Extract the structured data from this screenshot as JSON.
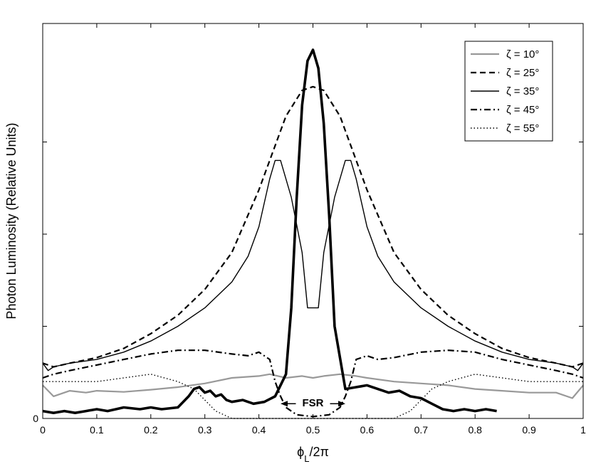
{
  "chart_data": {
    "type": "line",
    "title": "",
    "xlabel": "ϕ_L/2π",
    "xlabel_main": "ϕ",
    "xlabel_sub": "L",
    "xlabel_tail": "/2π",
    "ylabel": "Photon Luminosity (Relative Units)",
    "xlim": [
      0,
      1
    ],
    "ylim": [
      0,
      1
    ],
    "x_ticks": [
      0,
      0.1,
      0.2,
      0.3,
      0.4,
      0.5,
      0.6,
      0.7,
      0.8,
      0.9,
      1
    ],
    "x_tick_labels": [
      "0",
      "0.1",
      "0.2",
      "0.3",
      "0.4",
      "0.5",
      "0.6",
      "0.7",
      "0.8",
      "0.9",
      "1"
    ],
    "y_tick_labels": [
      "0"
    ],
    "grid": false,
    "legend_position": "top-right",
    "annotations": [
      {
        "text": "FSR",
        "x_from": 0.44,
        "x_to": 0.56,
        "y": 0.04
      }
    ],
    "series": [
      {
        "name": "ζ = 10°",
        "style": "solid",
        "color": "#999999",
        "width": "medium",
        "x": [
          0,
          0.02,
          0.05,
          0.08,
          0.1,
          0.15,
          0.2,
          0.25,
          0.3,
          0.35,
          0.4,
          0.42,
          0.45,
          0.48,
          0.5,
          0.52,
          0.55,
          0.58,
          0.6,
          0.65,
          0.7,
          0.75,
          0.8,
          0.85,
          0.9,
          0.95,
          0.98,
          1
        ],
        "y": [
          0.09,
          0.06,
          0.075,
          0.07,
          0.075,
          0.072,
          0.078,
          0.085,
          0.095,
          0.11,
          0.115,
          0.12,
          0.11,
          0.115,
          0.11,
          0.115,
          0.12,
          0.115,
          0.11,
          0.1,
          0.095,
          0.09,
          0.08,
          0.075,
          0.07,
          0.07,
          0.055,
          0.09
        ]
      },
      {
        "name": "ζ = 25°",
        "style": "dashed",
        "color": "#000000",
        "width": "medium",
        "x": [
          0,
          0.02,
          0.05,
          0.1,
          0.15,
          0.2,
          0.25,
          0.3,
          0.35,
          0.4,
          0.45,
          0.48,
          0.5,
          0.52,
          0.55,
          0.6,
          0.65,
          0.7,
          0.75,
          0.8,
          0.85,
          0.9,
          0.95,
          0.98,
          1
        ],
        "y": [
          0.15,
          0.14,
          0.15,
          0.165,
          0.19,
          0.23,
          0.28,
          0.35,
          0.45,
          0.62,
          0.82,
          0.89,
          0.9,
          0.89,
          0.82,
          0.62,
          0.45,
          0.35,
          0.28,
          0.23,
          0.19,
          0.165,
          0.15,
          0.14,
          0.15
        ]
      },
      {
        "name": "ζ = 35°",
        "style": "solid",
        "color": "#000000",
        "width": "thin",
        "x": [
          0,
          0.01,
          0.02,
          0.05,
          0.1,
          0.15,
          0.2,
          0.25,
          0.3,
          0.35,
          0.38,
          0.4,
          0.42,
          0.43,
          0.44,
          0.46,
          0.48,
          0.49,
          0.5,
          0.51,
          0.52,
          0.54,
          0.56,
          0.57,
          0.58,
          0.6,
          0.62,
          0.65,
          0.7,
          0.75,
          0.8,
          0.85,
          0.9,
          0.95,
          0.98,
          0.99,
          1
        ],
        "y": [
          0.15,
          0.13,
          0.14,
          0.15,
          0.16,
          0.18,
          0.21,
          0.25,
          0.3,
          0.37,
          0.44,
          0.52,
          0.65,
          0.7,
          0.7,
          0.6,
          0.45,
          0.3,
          0.3,
          0.3,
          0.45,
          0.6,
          0.7,
          0.7,
          0.65,
          0.52,
          0.44,
          0.37,
          0.3,
          0.25,
          0.21,
          0.18,
          0.16,
          0.15,
          0.14,
          0.13,
          0.15
        ]
      },
      {
        "name": "ζ = 45°",
        "style": "dashdot",
        "color": "#000000",
        "width": "medium",
        "x": [
          0,
          0.02,
          0.05,
          0.1,
          0.15,
          0.2,
          0.25,
          0.3,
          0.35,
          0.38,
          0.4,
          0.42,
          0.43,
          0.44,
          0.45,
          0.47,
          0.5,
          0.53,
          0.55,
          0.56,
          0.57,
          0.58,
          0.6,
          0.62,
          0.65,
          0.7,
          0.75,
          0.8,
          0.85,
          0.9,
          0.95,
          0.98,
          1
        ],
        "y": [
          0.11,
          0.12,
          0.13,
          0.145,
          0.16,
          0.175,
          0.185,
          0.185,
          0.175,
          0.17,
          0.18,
          0.16,
          0.1,
          0.06,
          0.03,
          0.01,
          0.005,
          0.01,
          0.03,
          0.06,
          0.1,
          0.16,
          0.17,
          0.16,
          0.165,
          0.18,
          0.185,
          0.18,
          0.16,
          0.145,
          0.13,
          0.12,
          0.11
        ]
      },
      {
        "name": "ζ = 55°",
        "style": "dotted",
        "color": "#000000",
        "width": "thin",
        "x": [
          0,
          0.05,
          0.1,
          0.15,
          0.2,
          0.25,
          0.28,
          0.3,
          0.32,
          0.35,
          0.4,
          0.45,
          0.5,
          0.55,
          0.6,
          0.65,
          0.68,
          0.7,
          0.72,
          0.75,
          0.8,
          0.85,
          0.9,
          0.95,
          1
        ],
        "y": [
          0.1,
          0.1,
          0.1,
          0.11,
          0.12,
          0.1,
          0.08,
          0.05,
          0.02,
          0,
          0,
          0,
          0,
          0,
          0,
          0,
          0.02,
          0.05,
          0.08,
          0.1,
          0.12,
          0.11,
          0.1,
          0.1,
          0.1
        ]
      },
      {
        "name": "",
        "style": "solid",
        "color": "#000000",
        "width": "thick",
        "x": [
          0,
          0.02,
          0.04,
          0.06,
          0.08,
          0.1,
          0.12,
          0.15,
          0.18,
          0.2,
          0.22,
          0.25,
          0.27,
          0.28,
          0.29,
          0.3,
          0.31,
          0.32,
          0.33,
          0.34,
          0.35,
          0.37,
          0.39,
          0.41,
          0.43,
          0.45,
          0.46,
          0.47,
          0.48,
          0.49,
          0.5,
          0.51,
          0.52,
          0.53,
          0.54,
          0.56,
          0.58,
          0.6,
          0.62,
          0.64,
          0.66,
          0.68,
          0.7,
          0.72,
          0.74,
          0.76,
          0.78,
          0.8,
          0.82,
          0.84
        ],
        "y": [
          0.02,
          0.015,
          0.02,
          0.015,
          0.02,
          0.025,
          0.02,
          0.03,
          0.025,
          0.03,
          0.025,
          0.03,
          0.06,
          0.08,
          0.085,
          0.07,
          0.075,
          0.06,
          0.065,
          0.05,
          0.045,
          0.05,
          0.04,
          0.045,
          0.06,
          0.12,
          0.3,
          0.6,
          0.85,
          0.97,
          1.0,
          0.95,
          0.8,
          0.55,
          0.25,
          0.08,
          0.085,
          0.09,
          0.08,
          0.07,
          0.075,
          0.06,
          0.055,
          0.04,
          0.025,
          0.02,
          0.025,
          0.02,
          0.025,
          0.02
        ]
      }
    ]
  }
}
